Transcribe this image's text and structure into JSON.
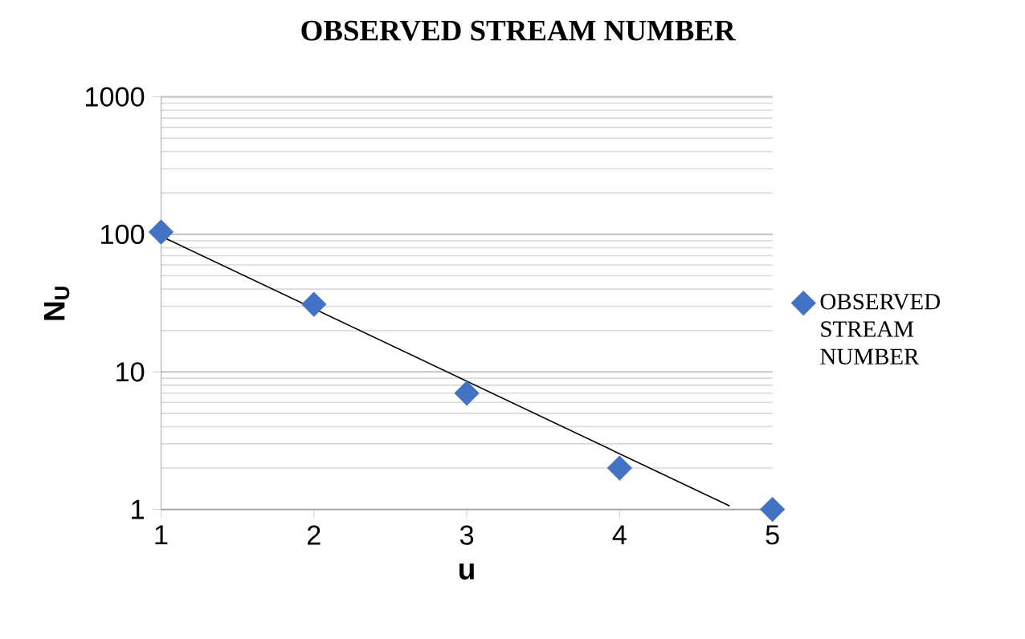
{
  "chart_data": {
    "type": "scatter",
    "title": "OBSERVED STREAM NUMBER",
    "xlabel": "u",
    "ylabel": "N$_{U}$",
    "x": [
      1,
      2,
      3,
      4,
      5
    ],
    "log": "y",
    "xlim": [
      1,
      5
    ],
    "ylim": [
      1,
      1000
    ],
    "xticks": [
      1,
      2,
      3,
      4,
      5
    ],
    "yticks": [
      1,
      10,
      100,
      1000
    ],
    "grid": "y",
    "legend": "right",
    "series": [
      {
        "name": "OBSERVED STREAM NUMBER",
        "marker": "diamond",
        "color": "#4472c4",
        "values": [
          104,
          31,
          7,
          2,
          1
        ]
      },
      {
        "type": "line",
        "x": [
          1,
          4.72
        ],
        "values": [
          97,
          1.06
        ],
        "color": "#000000",
        "marker": "none",
        "line_style": "solid"
      }
    ]
  }
}
